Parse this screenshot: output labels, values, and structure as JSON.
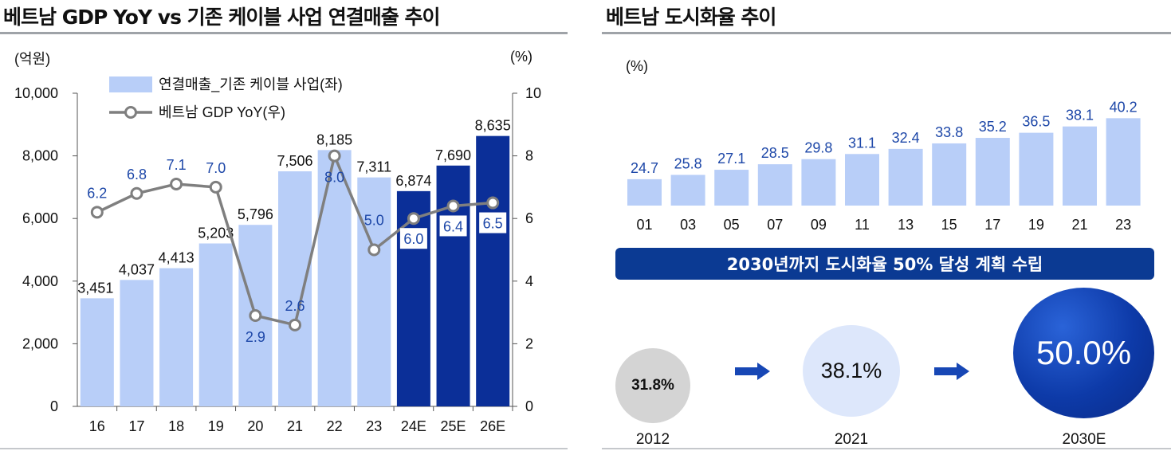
{
  "left_panel": {
    "title": "베트남 GDP YoY vs 기존 케이블 사업 연결매출 추이"
  },
  "right_panel": {
    "title": "베트남 도시화율 추이",
    "banner": "2030년까지 도시화율 50% 달성 계획 수립",
    "milestones": [
      {
        "year": "2012",
        "value": "31.8%"
      },
      {
        "year": "2021",
        "value": "38.1%"
      },
      {
        "year": "2030E",
        "value": "50.0%"
      }
    ]
  },
  "colors": {
    "bar_light": "#b8cef8",
    "bar_dark": "#0b2f98",
    "line": "#7f7f7f",
    "label_blue": "#1d47a8",
    "banner": "#0b3a93",
    "circle_2012": "#d4d4d4",
    "circle_2021": "#dde7fb",
    "circle_2030": "#0d3aa8"
  },
  "chart_data": [
    {
      "type": "bar",
      "secondary_type": "line",
      "categories": [
        "16",
        "17",
        "18",
        "19",
        "20",
        "21",
        "22",
        "23",
        "24E",
        "25E",
        "26E"
      ],
      "series": [
        {
          "name": "연결매출_기존 케이블 사업(좌)",
          "axis": "left",
          "values": [
            3451,
            4037,
            4413,
            5203,
            5796,
            7506,
            8185,
            7311,
            6874,
            7690,
            8635
          ],
          "labels": [
            "3,451",
            "4,037",
            "4,413",
            "5,203",
            "5,796",
            "7,506",
            "8,185",
            "7,311",
            "6,874",
            "7,690",
            "8,635"
          ],
          "estimate_from_index": 8
        },
        {
          "name": "베트남 GDP YoY(우)",
          "axis": "right",
          "values": [
            6.2,
            6.8,
            7.1,
            7.0,
            2.9,
            2.6,
            8.0,
            5.0,
            6.0,
            6.4,
            6.5
          ],
          "labels": [
            "6.2",
            "6.8",
            "7.1",
            "7.0",
            "2.9",
            "2.6",
            "8.0",
            "5.0",
            "6.0",
            "6.4",
            "6.5"
          ]
        }
      ],
      "ylabel": "(억원)",
      "y2label": "(%)",
      "ylim": [
        0,
        10000
      ],
      "y2lim": [
        0,
        10
      ],
      "yticks": [
        "0",
        "2,000",
        "4,000",
        "6,000",
        "8,000",
        "10,000"
      ],
      "y2ticks": [
        "0",
        "2",
        "4",
        "6",
        "8",
        "10"
      ],
      "legend_position": "top-left",
      "grid": false
    },
    {
      "type": "bar",
      "categories": [
        "01",
        "03",
        "05",
        "07",
        "09",
        "11",
        "13",
        "15",
        "17",
        "19",
        "21",
        "23"
      ],
      "values": [
        24.7,
        25.8,
        27.1,
        28.5,
        29.8,
        31.1,
        32.4,
        33.8,
        35.2,
        36.5,
        38.1,
        40.2
      ],
      "labels": [
        "24.7",
        "25.8",
        "27.1",
        "28.5",
        "29.8",
        "31.1",
        "32.4",
        "33.8",
        "35.2",
        "36.5",
        "38.1",
        "40.2"
      ],
      "ylabel": "(%)",
      "grid": false
    }
  ]
}
